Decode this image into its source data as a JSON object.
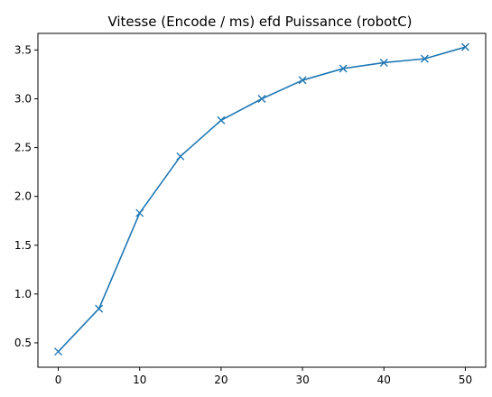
{
  "chart_data": {
    "type": "line",
    "title": "Vitesse (Encode / ms) efd Puissance (robotC)",
    "xlabel": "",
    "ylabel": "",
    "xlim": [
      -2.5,
      52.5
    ],
    "ylim": [
      0.25,
      3.67
    ],
    "xticks": [
      0,
      10,
      20,
      30,
      40,
      50
    ],
    "yticks": [
      0.5,
      1.0,
      1.5,
      2.0,
      2.5,
      3.0,
      3.5
    ],
    "ytick_labels": [
      "0.5",
      "1.0",
      "1.5",
      "2.0",
      "2.5",
      "3.0",
      "3.5"
    ],
    "xtick_labels": [
      "0",
      "10",
      "20",
      "30",
      "40",
      "50"
    ],
    "grid": false,
    "marker": "x",
    "color": "#1f77b4",
    "series": [
      {
        "x": [
          0,
          5,
          10,
          15,
          20,
          25,
          30,
          35,
          40,
          45,
          50
        ],
        "values": [
          0.41,
          0.85,
          1.83,
          2.41,
          2.78,
          3.0,
          3.19,
          3.31,
          3.37,
          3.41,
          3.53
        ]
      }
    ]
  }
}
